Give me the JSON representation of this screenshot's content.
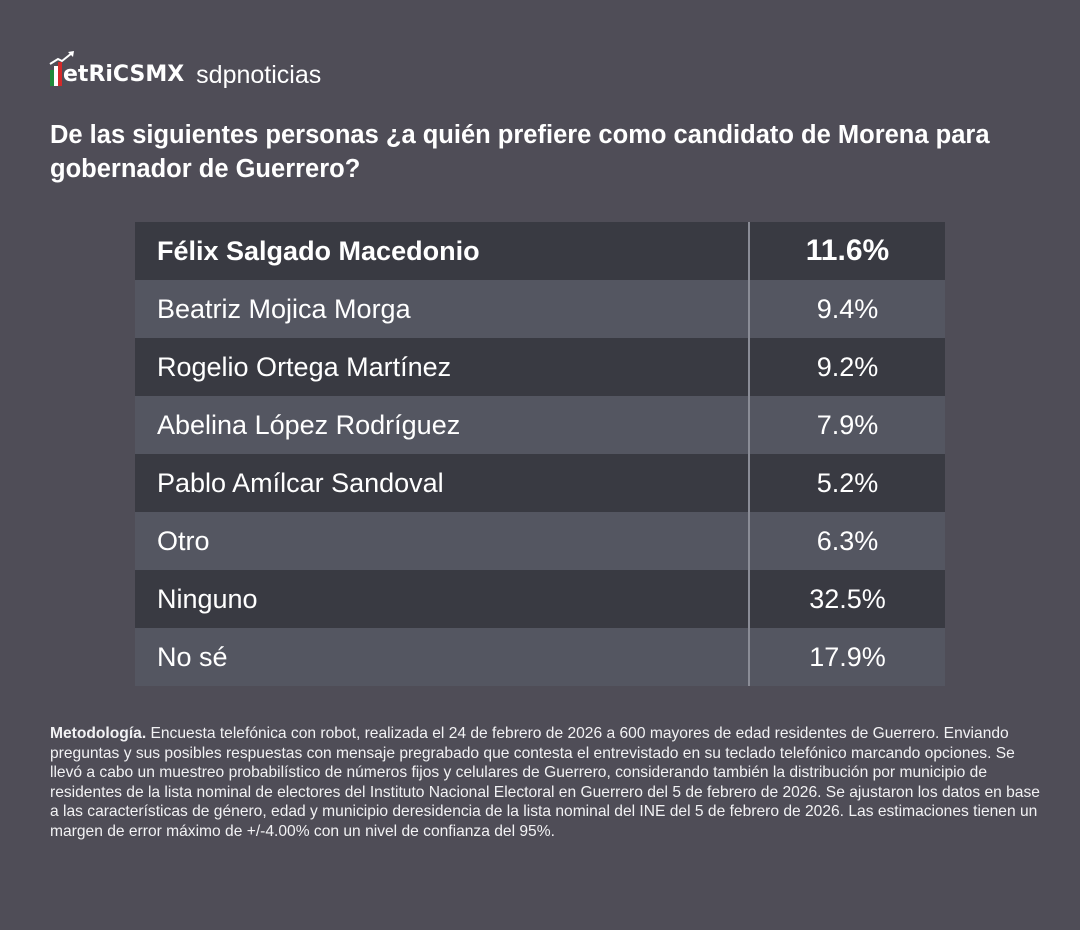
{
  "header": {
    "logo_metrics": "etRiCSMX",
    "logo_sdp": "sdpnoticias",
    "colors": {
      "green": "#1f8a3a",
      "white": "#ffffff",
      "red": "#d42a2a"
    }
  },
  "title": "De las siguientes personas ¿a quién prefiere como candidato de Morena para gobernador de Guerrero?",
  "chart_data": {
    "type": "table",
    "title": "De las siguientes personas ¿a quién prefiere como candidato de Morena para gobernador de Guerrero?",
    "rows": [
      {
        "label": "Félix Salgado Macedonio",
        "value": "11.6%"
      },
      {
        "label": "Beatriz Mojica Morga",
        "value": "9.4%"
      },
      {
        "label": "Rogelio Ortega Martínez",
        "value": "9.2%"
      },
      {
        "label": "Abelina López Rodríguez",
        "value": "7.9%"
      },
      {
        "label": "Pablo Amílcar Sandoval",
        "value": "5.2%"
      },
      {
        "label": "Otro",
        "value": "6.3%"
      },
      {
        "label": "Ninguno",
        "value": "32.5%"
      },
      {
        "label": "No sé",
        "value": "17.9%"
      }
    ],
    "colors": {
      "dark_row": "#393a42",
      "light_row": "#545661",
      "background": "#4f4d57"
    }
  },
  "methodology": {
    "label": "Metodología.",
    "text": " Encuesta telefónica con robot, realizada el 24 de febrero de 2026 a 600 mayores de edad residentes de Guerrero. Enviando preguntas y sus posibles respuestas con mensaje pregrabado que contesta el entrevistado en su teclado telefónico marcando opciones. Se llevó a cabo un muestreo probabilístico de números fijos y celulares de Guerrero, considerando también la distribución por municipio de residentes de la lista nominal de electores del Instituto Nacional Electoral en Guerrero del 5 de febrero de 2026. Se ajustaron los datos en base a las características de género, edad y municipio deresidencia de la lista nominal del INE del 5 de febrero de 2026. Las estimaciones tienen un margen de error máximo de +/-4.00% con un nivel de confianza del 95%."
  }
}
